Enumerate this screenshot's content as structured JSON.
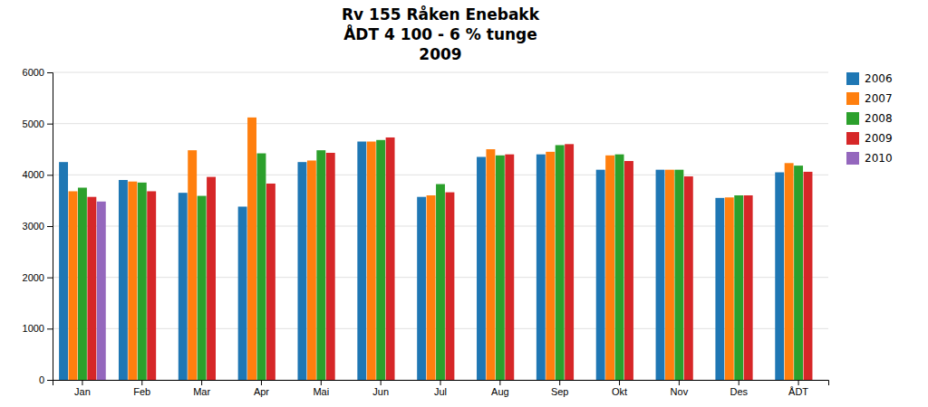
{
  "chart_data": {
    "type": "bar",
    "title": [
      "Rv 155 Råken Enebakk",
      "ÅDT 4 100 - 6 % tunge",
      "2009"
    ],
    "categories": [
      "Jan",
      "Feb",
      "Mar",
      "Apr",
      "Mai",
      "Jun",
      "Jul",
      "Aug",
      "Sep",
      "Okt",
      "Nov",
      "Des",
      "ÅDT"
    ],
    "series": [
      {
        "name": "2006",
        "values": [
          4250,
          3900,
          3650,
          3380,
          4250,
          4650,
          3570,
          4350,
          4400,
          4100,
          4100,
          3550,
          4050
        ]
      },
      {
        "name": "2007",
        "values": [
          3680,
          3870,
          4480,
          5120,
          4280,
          4650,
          3600,
          4500,
          4450,
          4380,
          4100,
          3560,
          4230
        ]
      },
      {
        "name": "2008",
        "values": [
          3750,
          3850,
          3590,
          4420,
          4480,
          4680,
          3820,
          4380,
          4580,
          4400,
          4100,
          3600,
          4180
        ]
      },
      {
        "name": "2009",
        "values": [
          3570,
          3680,
          3960,
          3830,
          4430,
          4730,
          3660,
          4400,
          4600,
          4270,
          3970,
          3600,
          4060
        ]
      },
      {
        "name": "2010",
        "values": [
          3480,
          null,
          null,
          null,
          null,
          null,
          null,
          null,
          null,
          null,
          null,
          null,
          null
        ]
      }
    ],
    "ylim": [
      0,
      6000
    ],
    "yticks": [
      0,
      1000,
      2000,
      3000,
      4000,
      5000,
      6000
    ],
    "grid": true,
    "legend": "right"
  }
}
